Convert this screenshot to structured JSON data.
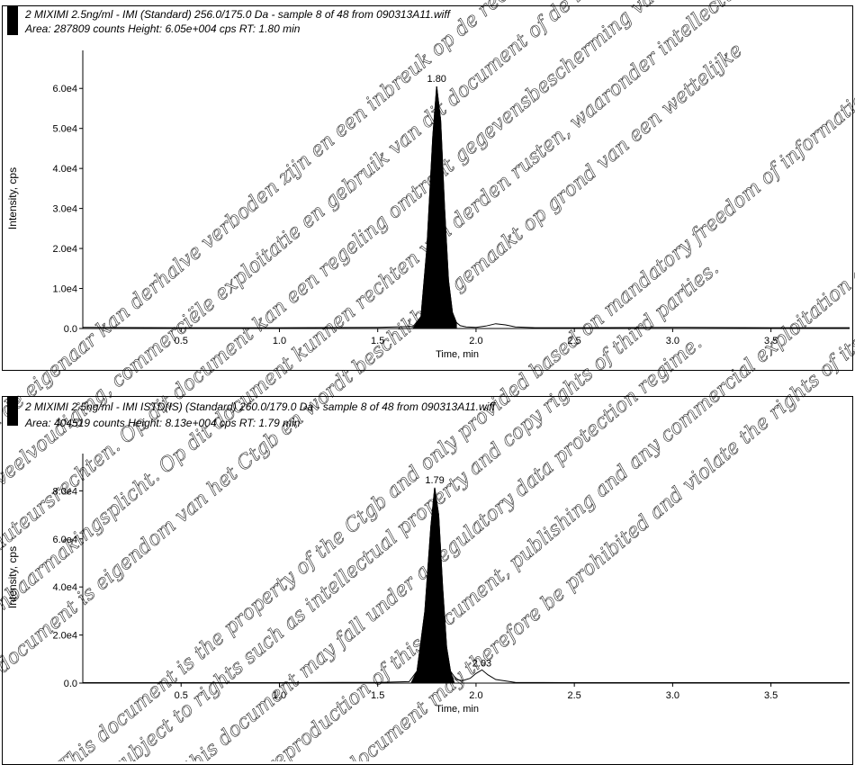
{
  "chart_data": [
    {
      "type": "line",
      "title": "2 MIXIMI   2.5ng/ml - IMI (Standard) 256.0/175.0 Da - sample 8 of 48 from 090313A11.wiff",
      "subtitle": "Area: 287809 counts  Height: 6.05e+004 cps  RT: 1.80 min",
      "xlabel": "Time, min",
      "ylabel": "Intensity, cps",
      "xlim": [
        0.0,
        3.9
      ],
      "ylim": [
        0,
        65000
      ],
      "x_ticks": [
        "0.5",
        "1.0",
        "1.5",
        "2.0",
        "2.5",
        "3.0",
        "3.5"
      ],
      "y_ticks": [
        "0.0",
        "1.0e4",
        "2.0e4",
        "3.0e4",
        "4.0e4",
        "5.0e4",
        "6.0e4"
      ],
      "peak_label": "1.80",
      "series": [
        {
          "x": [
            0.0,
            0.5,
            1.0,
            1.5,
            1.68,
            1.72,
            1.75,
            1.78,
            1.8,
            1.82,
            1.84,
            1.86,
            1.88,
            1.9,
            1.92,
            1.95,
            2.0,
            2.05,
            2.1,
            2.15,
            2.2,
            2.3,
            2.5,
            3.0,
            3.5,
            3.9
          ],
          "y": [
            300,
            200,
            200,
            300,
            500,
            3000,
            20000,
            48000,
            60500,
            52000,
            30000,
            12000,
            4000,
            1500,
            700,
            400,
            300,
            600,
            1200,
            900,
            400,
            200,
            200,
            300,
            200,
            200
          ]
        }
      ]
    },
    {
      "type": "line",
      "title": "2 MIXIMI   2.5ng/ml - IMI ISTD(IS) (Standard) 260.0/179.0 Da - sample 8 of 48 from 090313A11.wiff",
      "subtitle": "Area: 404519 counts  Height: 8.13e+004 cps  RT: 1.79 min",
      "xlabel": "Time, min",
      "ylabel": "Intensity, cps",
      "xlim": [
        0.0,
        3.9
      ],
      "ylim": [
        0,
        88000
      ],
      "x_ticks": [
        "0.5",
        "1.0",
        "1.5",
        "2.0",
        "2.5",
        "3.0",
        "3.5"
      ],
      "y_ticks": [
        "0.0",
        "2.0e4",
        "4.0e4",
        "6.0e4",
        "8.0e4"
      ],
      "peak_label": "1.79",
      "secondary_peak_label": "2.03",
      "series": [
        {
          "x": [
            0.0,
            0.5,
            1.0,
            1.5,
            1.66,
            1.7,
            1.74,
            1.77,
            1.79,
            1.81,
            1.83,
            1.85,
            1.87,
            1.9,
            1.93,
            1.97,
            2.0,
            2.03,
            2.06,
            2.1,
            2.2,
            2.5,
            3.0,
            3.5,
            3.9
          ],
          "y": [
            200,
            200,
            200,
            300,
            600,
            5000,
            30000,
            65000,
            81300,
            70000,
            40000,
            15000,
            5000,
            1500,
            1000,
            2000,
            4000,
            5500,
            3500,
            1500,
            300,
            200,
            200,
            200,
            200
          ]
        }
      ]
    }
  ],
  "watermark_lines": [
    "This document is the property of the Ctgb and only provided based on mandatory freedom of information requirements",
    "subject to rights such as intellectual property and copy rights of third parties.",
    "this document may fall under a regulatory data protection regime.",
    "reproduction of this document, publishing and any commercial exploitation and use of this",
    "document may therefore be prohibited and violate the rights of its owner.",
    "Dit document is eigendom van het Ctgb en wordt beschikbaar gemaakt op grond van een wettelijke",
    "openbaarmakingsplicht. Op dit document kunnen rechten van derden rusten, waaronder intellectuele eigendomsrechten",
    "en auteursrechten. Op dit document kan een regeling omtrent gegevensbescherming van toepassing zijn.",
    "Verveelvoudiging, commerciële exploitatie en gebruik van dit document of de inhoud hiervan zonder toestemming",
    "van de eigenaar kan derhalve verboden zijn en een inbreuk op de rechten van deze rechthebbende opleveren."
  ]
}
